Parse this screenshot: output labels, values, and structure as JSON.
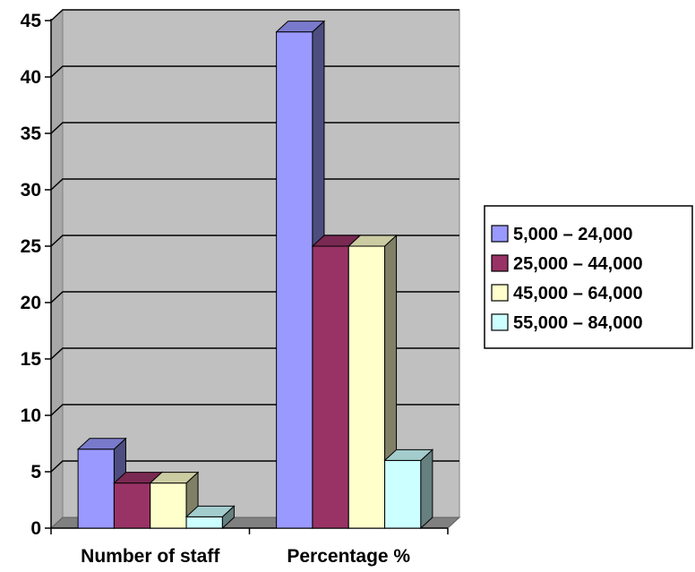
{
  "chart_data": {
    "type": "bar",
    "style": "3d-clustered-column",
    "categories": [
      "Number of staff",
      "Percentage %"
    ],
    "series": [
      {
        "name": "5,000 – 24,000",
        "values": [
          7,
          44
        ],
        "color": "#9999ff"
      },
      {
        "name": "25,000 – 44,000",
        "values": [
          4,
          25
        ],
        "color": "#993366"
      },
      {
        "name": "45,000 – 64,000",
        "values": [
          4,
          25
        ],
        "color": "#ffffcc"
      },
      {
        "name": "55,000 – 84,000",
        "values": [
          1,
          6
        ],
        "color": "#ccffff"
      }
    ],
    "ylim": [
      0,
      45
    ],
    "yticks": [
      0,
      5,
      10,
      15,
      20,
      25,
      30,
      35,
      40,
      45
    ],
    "grid": true,
    "plot_background": "#c0c0c0",
    "legend_position": "right",
    "title": "",
    "xlabel": "",
    "ylabel": ""
  }
}
